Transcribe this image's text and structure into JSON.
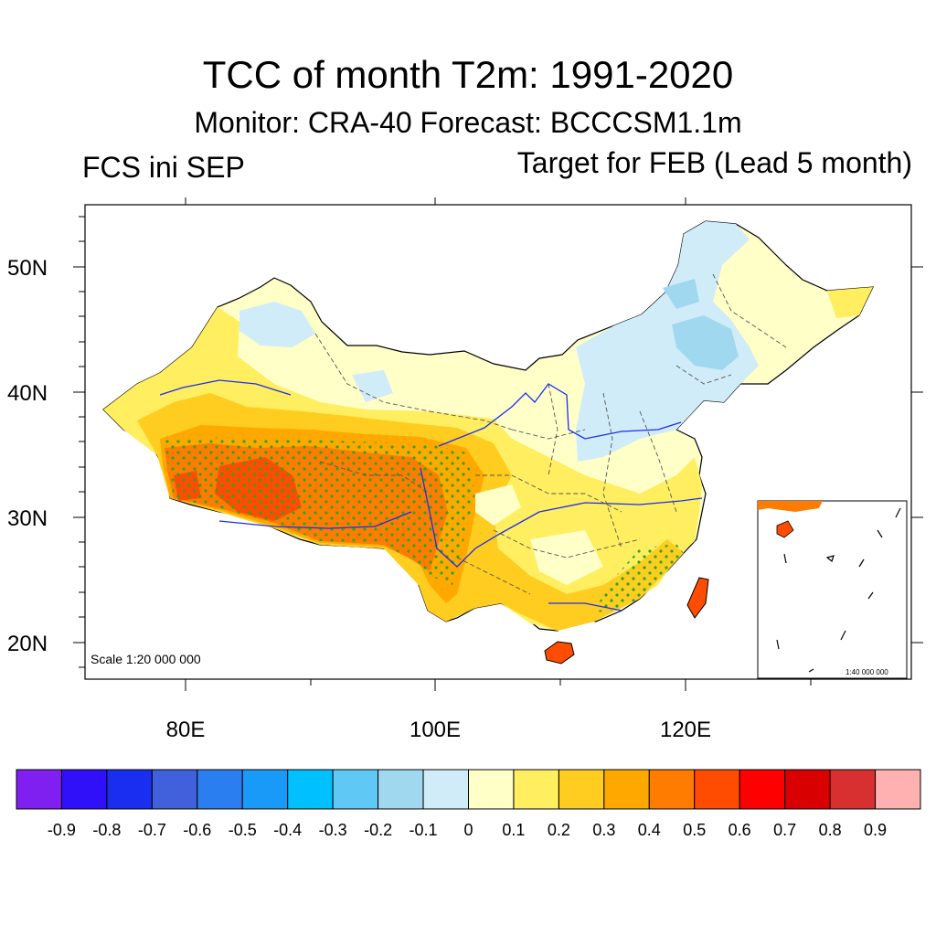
{
  "title": "TCC of month T2m: 1991-2020",
  "subtitle": "Monitor: CRA-40   Forecast: BCCCSM1.1m",
  "left_label": "FCS ini SEP",
  "right_label": "Target for FEB (Lead 5 month)",
  "scale_label": "Scale 1:20 000 000",
  "inset_scale_label": "1:40 000 000",
  "lat_ticks": [
    "50N",
    "40N",
    "30N",
    "20N"
  ],
  "lon_ticks": [
    "80E",
    "100E",
    "120E"
  ],
  "colorbar": {
    "colors": [
      "#8020f0",
      "#3010f8",
      "#1a2ef0",
      "#4060dc",
      "#2a7ef0",
      "#1a9af8",
      "#00c0ff",
      "#60c8f4",
      "#a0d8f0",
      "#d0ecf8",
      "#ffffc8",
      "#ffee60",
      "#ffcc20",
      "#ffa800",
      "#ff7c00",
      "#ff4c00",
      "#ff0000",
      "#d80000",
      "#d83030",
      "#ffb0b0"
    ],
    "labels": [
      "-0.9",
      "-0.8",
      "-0.7",
      "-0.6",
      "-0.5",
      "-0.4",
      "-0.3",
      "-0.2",
      "-0.1",
      "0",
      "0.1",
      "0.2",
      "0.3",
      "0.4",
      "0.5",
      "0.6",
      "0.7",
      "0.8",
      "0.9"
    ]
  },
  "map_colors": {
    "outside": "#ffffff",
    "land_base": "#ffffc8",
    "weak_positive": "#ffee60",
    "moderate_positive": "#ffcc20",
    "strong_positive": "#ffa800",
    "high_positive": "#ff7c00",
    "weak_negative": "#d0ecf8",
    "moderate_negative": "#a0d8f0",
    "stipple": "#22aa22",
    "river": "#1a2ef0"
  }
}
